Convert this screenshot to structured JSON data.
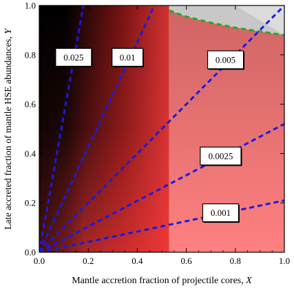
{
  "chart_data": {
    "type": "line",
    "title": "",
    "xlabel_main": "Mantle accretion fraction of projectile cores, ",
    "xlabel_var": "X",
    "ylabel_main": "Late accreted fraction of mantle HSE abundances, ",
    "ylabel_var": "Y",
    "xlim": [
      0,
      1
    ],
    "ylim": [
      0,
      1
    ],
    "x_ticks": [
      "0.0",
      "0.2",
      "0.4",
      "0.6",
      "0.8",
      "1.0"
    ],
    "y_ticks": [
      "0.0",
      "0.2",
      "0.4",
      "0.6",
      "0.8",
      "1.0"
    ],
    "grid": false,
    "region_boundary_x": 0.53,
    "series": [
      {
        "name": "0.025",
        "color": "#1a1adf",
        "style": "dashed",
        "x": [
          0,
          0.18
        ],
        "y": [
          0,
          1.0
        ],
        "label_at": [
          0.14,
          0.79
        ]
      },
      {
        "name": "0.01",
        "color": "#1a1adf",
        "style": "dashed",
        "x": [
          0,
          0.47
        ],
        "y": [
          0,
          1.0
        ],
        "label_at": [
          0.36,
          0.79
        ]
      },
      {
        "name": "0.005",
        "color": "#1a1adf",
        "style": "dashed",
        "x": [
          0,
          1.0
        ],
        "y": [
          0,
          1.0
        ],
        "label_at": [
          0.76,
          0.78
        ]
      },
      {
        "name": "0.0025",
        "color": "#1a1adf",
        "style": "dashed",
        "x": [
          0,
          1.0
        ],
        "y": [
          0,
          0.52
        ],
        "label_at": [
          0.74,
          0.39
        ]
      },
      {
        "name": "0.001",
        "color": "#1a1adf",
        "style": "dashed",
        "x": [
          0,
          1.0
        ],
        "y": [
          0,
          0.21
        ],
        "label_at": [
          0.74,
          0.16
        ]
      }
    ],
    "boundary_curve": {
      "color": "#22aa22",
      "style": "dashed",
      "x": [
        0.53,
        0.6,
        0.7,
        0.8,
        0.9,
        1.0
      ],
      "y": [
        0.98,
        0.955,
        0.93,
        0.91,
        0.895,
        0.88
      ]
    },
    "colors": {
      "background_dark": "#000000",
      "background_red": "#ff3a3a",
      "light_region": "#f07c7c",
      "excluded_region": "#c8c8c8",
      "line": "#1a1adf",
      "boundary": "#22aa22"
    }
  }
}
